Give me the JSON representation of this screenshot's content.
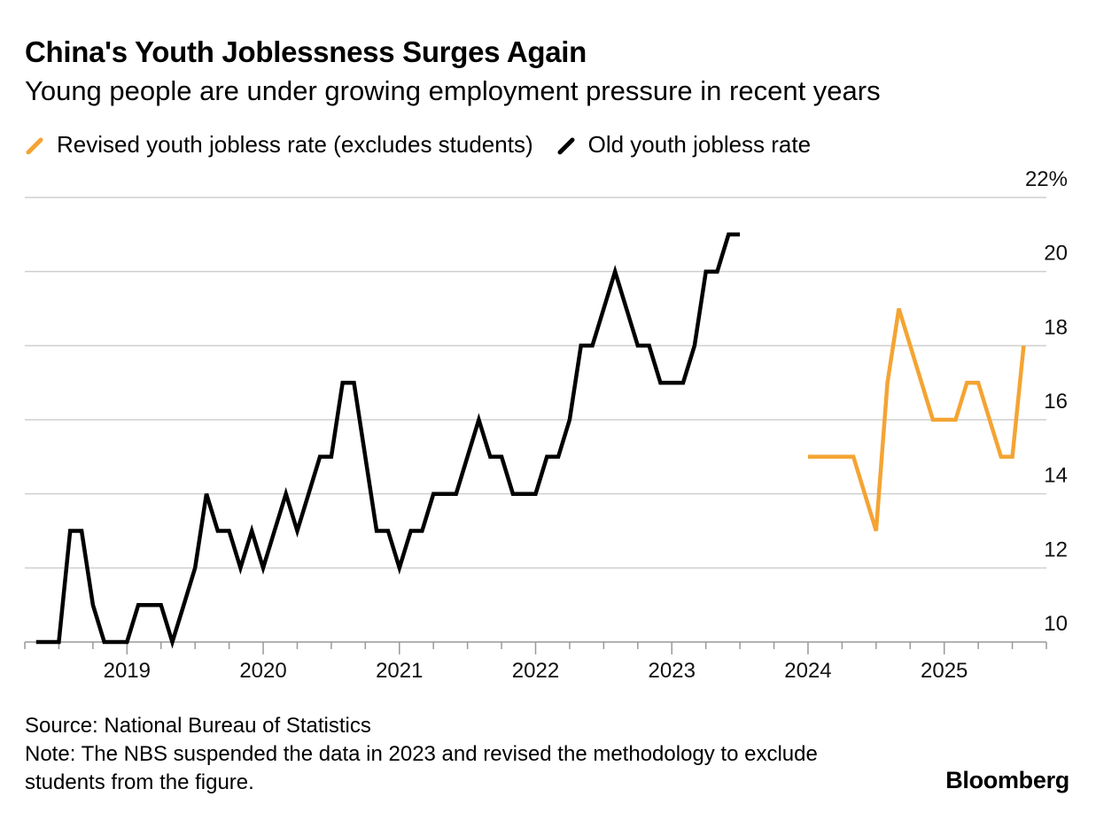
{
  "chart_data": {
    "type": "line",
    "title": "China's Youth Joblessness Surges Again",
    "subtitle": "Young people are under growing employment pressure in recent years",
    "ylim": [
      10,
      22
    ],
    "y_ticks": [
      10,
      12,
      14,
      16,
      18,
      20,
      22
    ],
    "y_tick_labels": [
      "10",
      "12",
      "14",
      "16",
      "18",
      "20",
      "22%"
    ],
    "x_year_labels": [
      "2019",
      "2020",
      "2021",
      "2022",
      "2023",
      "2024",
      "2025"
    ],
    "x_start": "2018-04",
    "x_end": "2025-10",
    "series": [
      {
        "name": "Old youth jobless rate",
        "color": "#000000",
        "start_month": "2018-05",
        "values": [
          10,
          10,
          10,
          13,
          13,
          11,
          10,
          10,
          10,
          11,
          11,
          11,
          10,
          11,
          12,
          14,
          13,
          13,
          12,
          13,
          12,
          13,
          14,
          13,
          14,
          15,
          15,
          17,
          17,
          15,
          13,
          13,
          12,
          13,
          13,
          14,
          14,
          14,
          15,
          16,
          15,
          15,
          14,
          14,
          14,
          15,
          15,
          16,
          18,
          18,
          19,
          20,
          19,
          18,
          18,
          17,
          17,
          17,
          18,
          20,
          20,
          21,
          21
        ]
      },
      {
        "name": "Revised youth jobless rate (excludes students)",
        "color": "#f4a433",
        "start_month": "2024-01",
        "values": [
          15,
          15,
          15,
          15,
          15,
          14,
          13,
          17,
          19,
          18,
          17,
          16,
          16,
          16,
          17,
          17,
          16,
          15,
          15,
          18
        ]
      }
    ]
  },
  "legend": {
    "revised_label": "Revised youth jobless rate (excludes students)",
    "old_label": "Old youth jobless rate"
  },
  "footer": {
    "source": "Source: National Bureau of Statistics",
    "note_line1": "Note: The NBS suspended the data in 2023 and revised the methodology to exclude",
    "note_line2": "students from the figure.",
    "brand": "Bloomberg"
  }
}
